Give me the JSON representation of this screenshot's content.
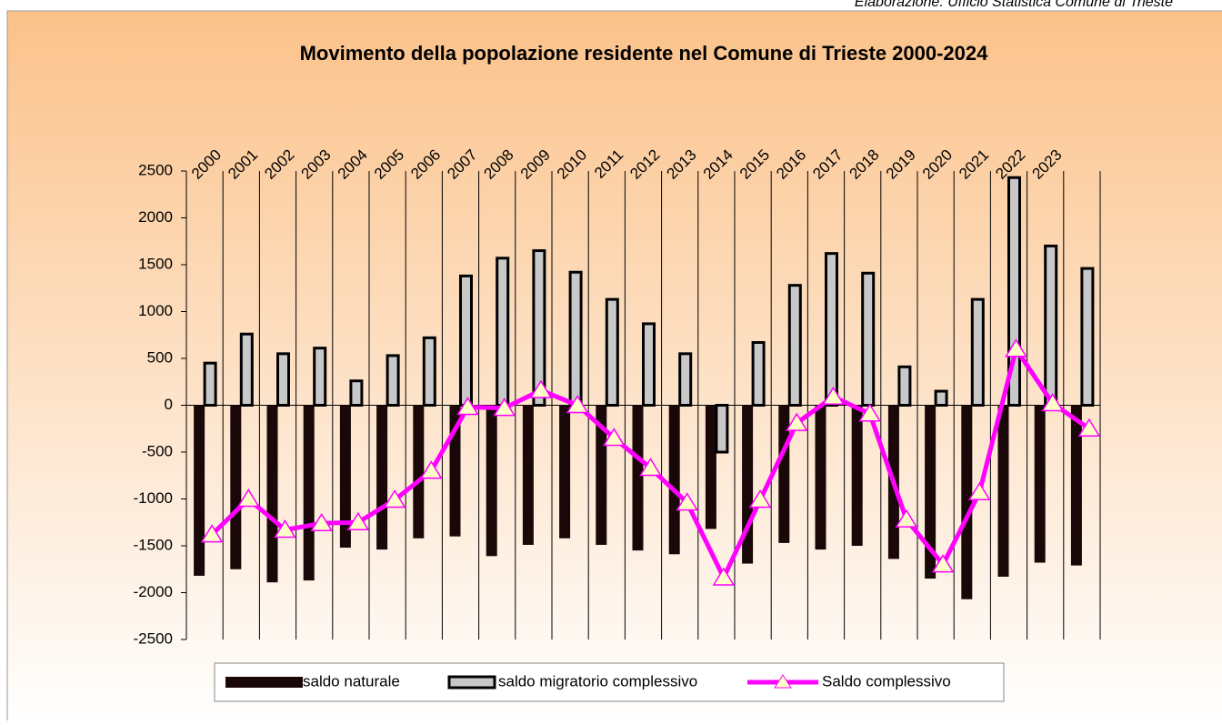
{
  "chart_data": {
    "type": "bar-line",
    "title": "Movimento della popolazione residente nel Comune di Trieste 2000-2024",
    "subtitle": "Elaborazione: Ufficio Statistica Comune di Trieste",
    "categories": [
      "2000",
      "2001",
      "2002",
      "2003",
      "2004",
      "2005",
      "2006",
      "2007",
      "2008",
      "2009",
      "2010",
      "2011",
      "2012",
      "2013",
      "2014",
      "2015",
      "2016",
      "2017",
      "2018",
      "2019",
      "2020",
      "2021",
      "2022",
      "2023",
      null
    ],
    "series": [
      {
        "name": "saldo naturale",
        "type": "bar",
        "color": "#1a0808",
        "values": [
          -1820,
          -1750,
          -1890,
          -1870,
          -1520,
          -1540,
          -1420,
          -1400,
          -1610,
          -1490,
          -1420,
          -1490,
          -1550,
          -1590,
          -1320,
          -1690,
          -1470,
          -1540,
          -1500,
          -1640,
          -1850,
          -2070,
          -1830,
          -1680,
          -1710
        ]
      },
      {
        "name": "saldo migratorio complessivo",
        "type": "bar",
        "color": "#c8c8c8",
        "values": [
          450,
          760,
          550,
          610,
          260,
          530,
          720,
          1380,
          1570,
          1650,
          1420,
          1130,
          870,
          550,
          -500,
          670,
          1280,
          1620,
          1410,
          410,
          150,
          1130,
          2430,
          1700,
          1460
        ]
      },
      {
        "name": "Saldo complessivo",
        "type": "line",
        "color": "#ff00ff",
        "values": [
          -1380,
          -1000,
          -1330,
          -1260,
          -1250,
          -1010,
          -700,
          -20,
          -30,
          160,
          0,
          -350,
          -670,
          -1040,
          -1840,
          -1010,
          -190,
          90,
          -90,
          -1220,
          -1700,
          -930,
          600,
          20,
          -250
        ]
      }
    ],
    "ylim": [
      -2500,
      2500
    ],
    "yticks": [
      -2500,
      -2000,
      -1500,
      -1000,
      -500,
      0,
      500,
      1000,
      1500,
      2000,
      2500
    ],
    "legend": "bottom"
  }
}
